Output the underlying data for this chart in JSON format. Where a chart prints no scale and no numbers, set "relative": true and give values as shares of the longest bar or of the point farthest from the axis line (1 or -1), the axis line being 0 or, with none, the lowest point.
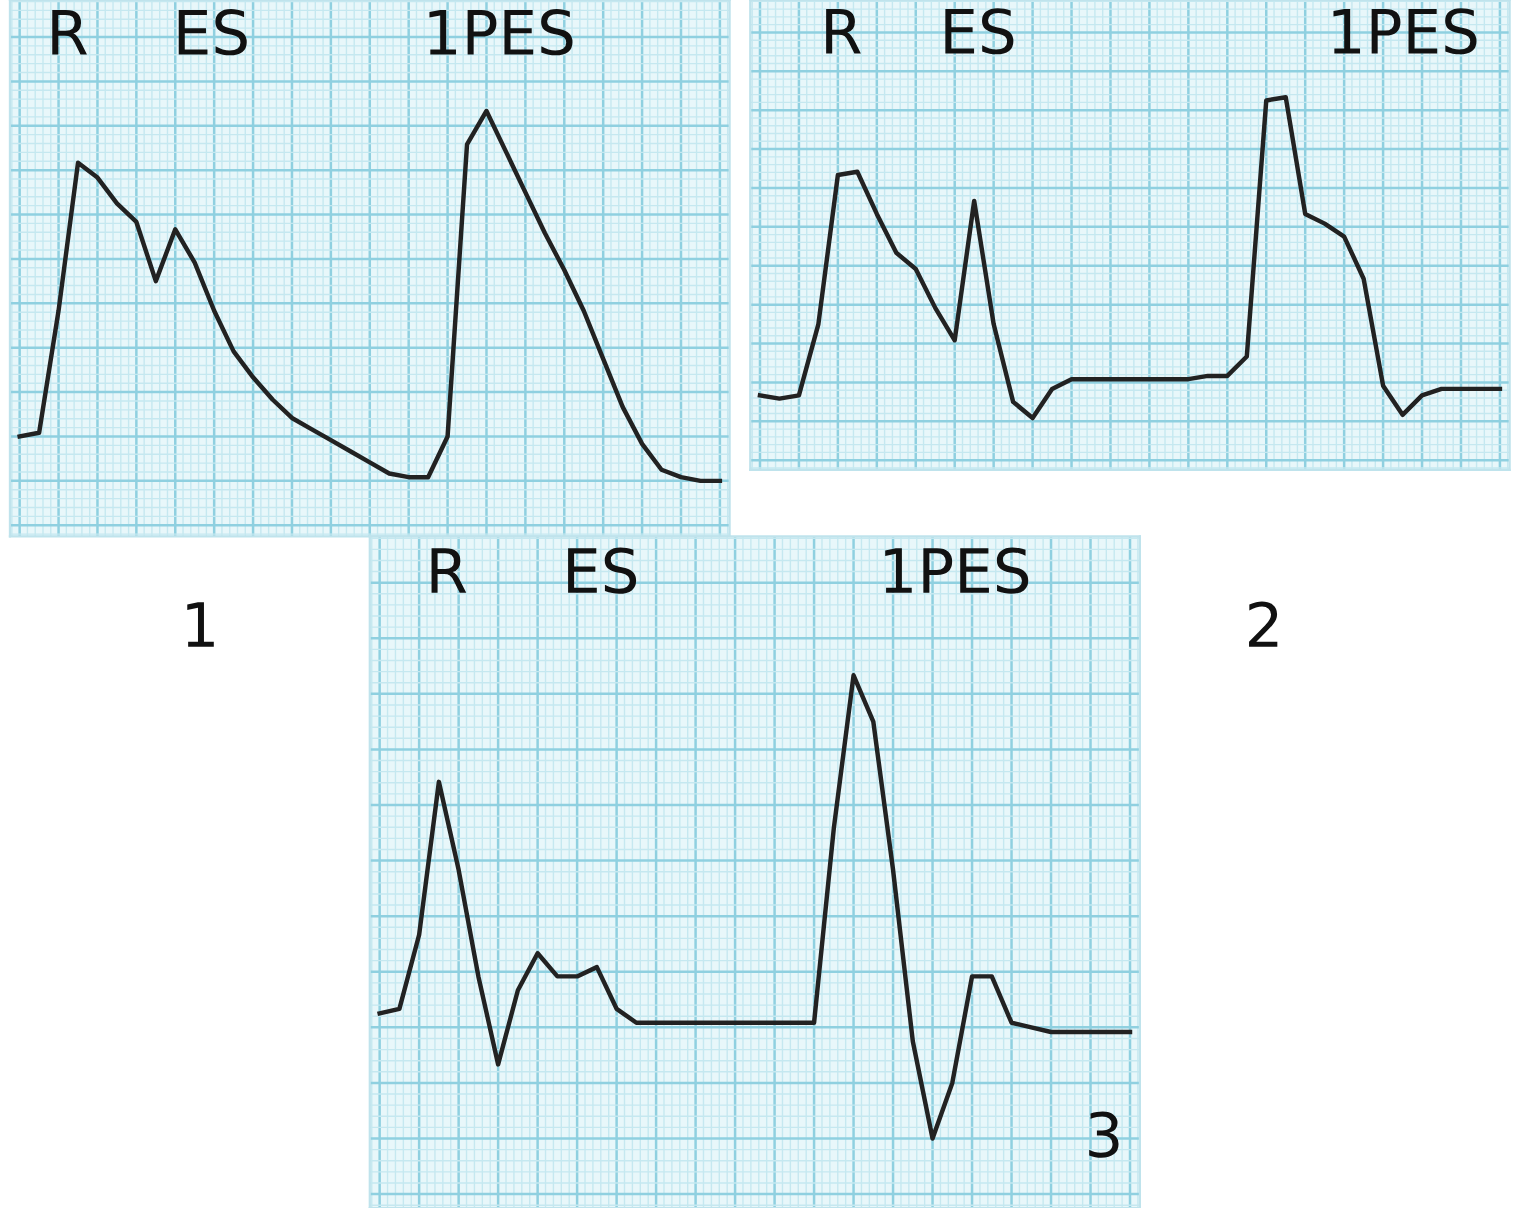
{
  "chart_data": [
    {
      "type": "line",
      "title": "1",
      "relative": true,
      "grid": true,
      "tick_labels": false,
      "legend": false,
      "annotations": [
        "R",
        "ES",
        "1PES"
      ],
      "categories": [
        null,
        null,
        null,
        null,
        null,
        null,
        null,
        null,
        null,
        null,
        null,
        null,
        null,
        null,
        null,
        null,
        null,
        null,
        null,
        null,
        null,
        null,
        null,
        null,
        null,
        null,
        null,
        null,
        null,
        null,
        null,
        null,
        null,
        null,
        null,
        null,
        null
      ],
      "series": [
        {
          "color": "#222222",
          "values": [
            0.12,
            0.13,
            0.46,
            0.86,
            0.82,
            0.75,
            0.7,
            0.54,
            0.68,
            0.59,
            0.46,
            0.35,
            0.28,
            0.22,
            0.17,
            0.14,
            0.11,
            0.08,
            0.05,
            0.02,
            0.01,
            0.01,
            0.12,
            0.91,
            1.0,
            0.89,
            0.78,
            0.67,
            0.57,
            0.46,
            0.33,
            0.2,
            0.1,
            0.03,
            0.01,
            0,
            0
          ]
        }
      ]
    },
    {
      "type": "line",
      "title": "2",
      "relative": true,
      "grid": true,
      "tick_labels": false,
      "legend": false,
      "annotations": [
        "R",
        "ES",
        "1PES"
      ],
      "categories": [
        null,
        null,
        null,
        null,
        null,
        null,
        null,
        null,
        null,
        null,
        null,
        null,
        null,
        null,
        null,
        null,
        null,
        null,
        null,
        null,
        null,
        null,
        null,
        null,
        null,
        null,
        null,
        null,
        null,
        null,
        null,
        null,
        null,
        null,
        null,
        null,
        null,
        null,
        null
      ],
      "series": [
        {
          "color": "#222222",
          "values": [
            0.08,
            0.07,
            0.08,
            0.3,
            0.76,
            0.77,
            0.64,
            0.52,
            0.47,
            0.35,
            0.25,
            0.68,
            0.3,
            0.06,
            0.01,
            0.1,
            0.13,
            0.13,
            0.13,
            0.13,
            0.13,
            0.13,
            0.13,
            0.14,
            0.14,
            0.2,
            0.99,
            1.0,
            0.64,
            0.61,
            0.57,
            0.44,
            0.11,
            0.02,
            0.08,
            0.1,
            0.1,
            0.1,
            0.1
          ]
        }
      ]
    },
    {
      "type": "line",
      "title": "3",
      "relative": true,
      "grid": true,
      "tick_labels": false,
      "legend": false,
      "annotations": [
        "R",
        "ES",
        "1PES"
      ],
      "categories": [
        null,
        null,
        null,
        null,
        null,
        null,
        null,
        null,
        null,
        null,
        null,
        null,
        null,
        null,
        null,
        null,
        null,
        null,
        null,
        null,
        null,
        null,
        null,
        null,
        null,
        null,
        null,
        null,
        null,
        null,
        null,
        null,
        null,
        null,
        null,
        null,
        null,
        null,
        null
      ],
      "series": [
        {
          "color": "#222222",
          "values": [
            0.27,
            0.28,
            0.44,
            0.77,
            0.58,
            0.35,
            0.16,
            0.32,
            0.4,
            0.35,
            0.35,
            0.37,
            0.28,
            0.25,
            0.25,
            0.25,
            0.25,
            0.25,
            0.25,
            0.25,
            0.25,
            0.25,
            0.25,
            0.67,
            1.0,
            0.9,
            0.58,
            0.21,
            0,
            0.12,
            0.35,
            0.35,
            0.25,
            0.24,
            0.23,
            0.23,
            0.23,
            0.23,
            0.23
          ]
        }
      ]
    }
  ]
}
